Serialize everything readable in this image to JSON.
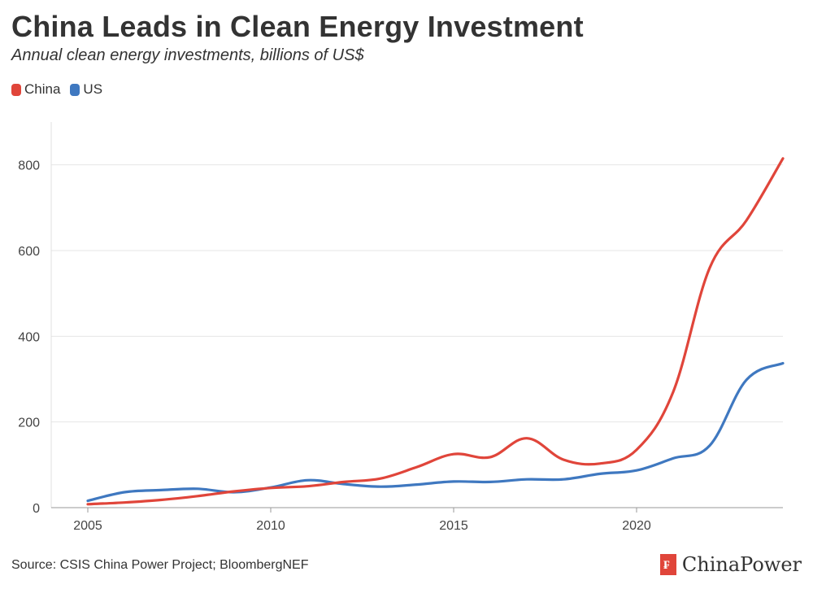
{
  "chart_data": {
    "type": "line",
    "title": "China Leads in Clean Energy Investment",
    "subtitle": "Annual clean energy investments, billions of US$",
    "xlabel": "",
    "ylabel": "",
    "xlim": [
      2004,
      2024
    ],
    "ylim": [
      0,
      900
    ],
    "x": [
      2005,
      2006,
      2007,
      2008,
      2009,
      2010,
      2011,
      2012,
      2013,
      2014,
      2015,
      2016,
      2017,
      2018,
      2019,
      2020,
      2021,
      2022,
      2023,
      2024
    ],
    "x_ticks": [
      2005,
      2010,
      2015,
      2020
    ],
    "y_ticks": [
      0,
      200,
      400,
      600,
      800
    ],
    "grid": true,
    "legend_position": "top-left",
    "series": [
      {
        "name": "China",
        "color": "#e0453a",
        "values": [
          8,
          12,
          18,
          27,
          38,
          46,
          50,
          60,
          68,
          95,
          125,
          118,
          162,
          112,
          103,
          135,
          270,
          560,
          670,
          815
        ]
      },
      {
        "name": "US",
        "color": "#3f78c0",
        "values": [
          16,
          36,
          41,
          44,
          36,
          47,
          64,
          55,
          49,
          54,
          61,
          60,
          66,
          66,
          79,
          87,
          115,
          145,
          298,
          337
        ]
      }
    ]
  },
  "source": "Source: CSIS China Power Project; BloombergNEF",
  "brand": {
    "name": "ChinaPower",
    "logo_glyph": "₣"
  }
}
